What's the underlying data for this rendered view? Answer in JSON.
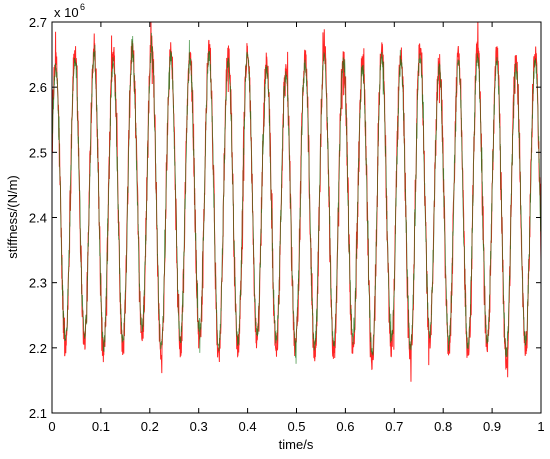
{
  "chart_data": {
    "type": "line",
    "xlabel": "time/s",
    "ylabel": "stiffness/(N/m)",
    "y_multiplier_base": "x 10",
    "y_multiplier_exponent": "6",
    "xlim": [
      0,
      1
    ],
    "ylim": [
      2.1,
      2.7
    ],
    "x_ticks": [
      0,
      0.1,
      0.2,
      0.3,
      0.4,
      0.5,
      0.6,
      0.7,
      0.8,
      0.9,
      1
    ],
    "x_tick_labels": [
      "0",
      "0.1",
      "0.2",
      "0.3",
      "0.4",
      "0.5",
      "0.6",
      "0.7",
      "0.8",
      "0.9",
      "1"
    ],
    "y_ticks": [
      2.1,
      2.2,
      2.3,
      2.4,
      2.5,
      2.6,
      2.7
    ],
    "y_tick_labels": [
      "2.1",
      "2.2",
      "2.3",
      "2.4",
      "2.5",
      "2.6",
      "2.7"
    ],
    "series": [
      {
        "color": "#ff0000",
        "signal": {
          "mean": 2.435,
          "amplitude": 0.2,
          "frequency_hz": 25.5,
          "noise_amplitude": 0.035,
          "peak_values": [
            2.64,
            2.65,
            2.66,
            2.65,
            2.66,
            2.67,
            2.66,
            2.65,
            2.66,
            2.65,
            2.66,
            2.64,
            2.63,
            2.65,
            2.66,
            2.65,
            2.64,
            2.66,
            2.65,
            2.66,
            2.64,
            2.65,
            2.66,
            2.65,
            2.64,
            2.65
          ],
          "trough_values": [
            2.2,
            2.21,
            2.19,
            2.2,
            2.22,
            2.19,
            2.2,
            2.21,
            2.19,
            2.2,
            2.21,
            2.2,
            2.2,
            2.19,
            2.19,
            2.2,
            2.18,
            2.2,
            2.19,
            2.21,
            2.2,
            2.19,
            2.2,
            2.18,
            2.2,
            2.21
          ]
        }
      },
      {
        "color": "#1a7a1a",
        "signal": {
          "mean": 2.43,
          "amplitude": 0.19,
          "frequency_hz": 25.5,
          "noise_amplitude": 0.02
        }
      }
    ],
    "grid": false,
    "legend": "none"
  }
}
